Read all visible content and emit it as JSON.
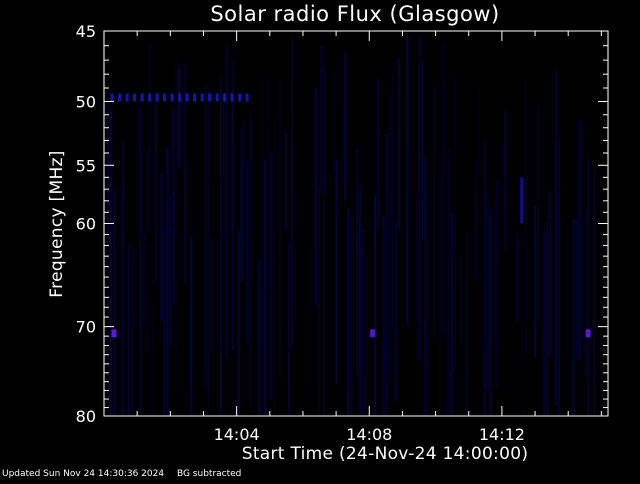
{
  "chart_data": {
    "type": "heatmap",
    "title": "Solar radio Flux (Glasgow)",
    "xlabel": "Start Time (24-Nov-24 14:00:00)",
    "ylabel": "Frequency [MHz]",
    "x_range_minutes": [
      0,
      15.2
    ],
    "x_ticks": [
      {
        "label": "14:04",
        "minute": 4
      },
      {
        "label": "14:08",
        "minute": 8
      },
      {
        "label": "14:12",
        "minute": 12
      }
    ],
    "y_scale": "log",
    "y_range": [
      80,
      45
    ],
    "y_ticks": [
      {
        "label": "45",
        "value": 45
      },
      {
        "label": "50",
        "value": 50
      },
      {
        "label": "55",
        "value": 55
      },
      {
        "label": "60",
        "value": 60
      },
      {
        "label": "70",
        "value": 70
      },
      {
        "label": "80",
        "value": 80
      }
    ],
    "background_color": "#000000",
    "colormap": [
      "#000000",
      "#000040",
      "#0000a0",
      "#4000c0"
    ],
    "features": [
      {
        "name": "band-50MHz",
        "frequency": 49.7,
        "minutes": [
          0.2,
          4.3
        ],
        "intensity": 0.8
      },
      {
        "name": "spot-70MHz-a",
        "frequency": 70.7,
        "minute": 0.3,
        "intensity": 1.0
      },
      {
        "name": "spot-70MHz-b",
        "frequency": 70.7,
        "minute": 8.1,
        "intensity": 0.9
      },
      {
        "name": "spot-70MHz-c",
        "frequency": 70.7,
        "minute": 14.6,
        "intensity": 1.0
      },
      {
        "name": "drift-streak",
        "frequency_range": [
          56,
          60
        ],
        "minute": 12.6,
        "intensity": 0.7
      }
    ]
  },
  "footer": {
    "updated": "Updated Sun Nov 24 14:30:36 2024",
    "note": "BG subtracted"
  }
}
